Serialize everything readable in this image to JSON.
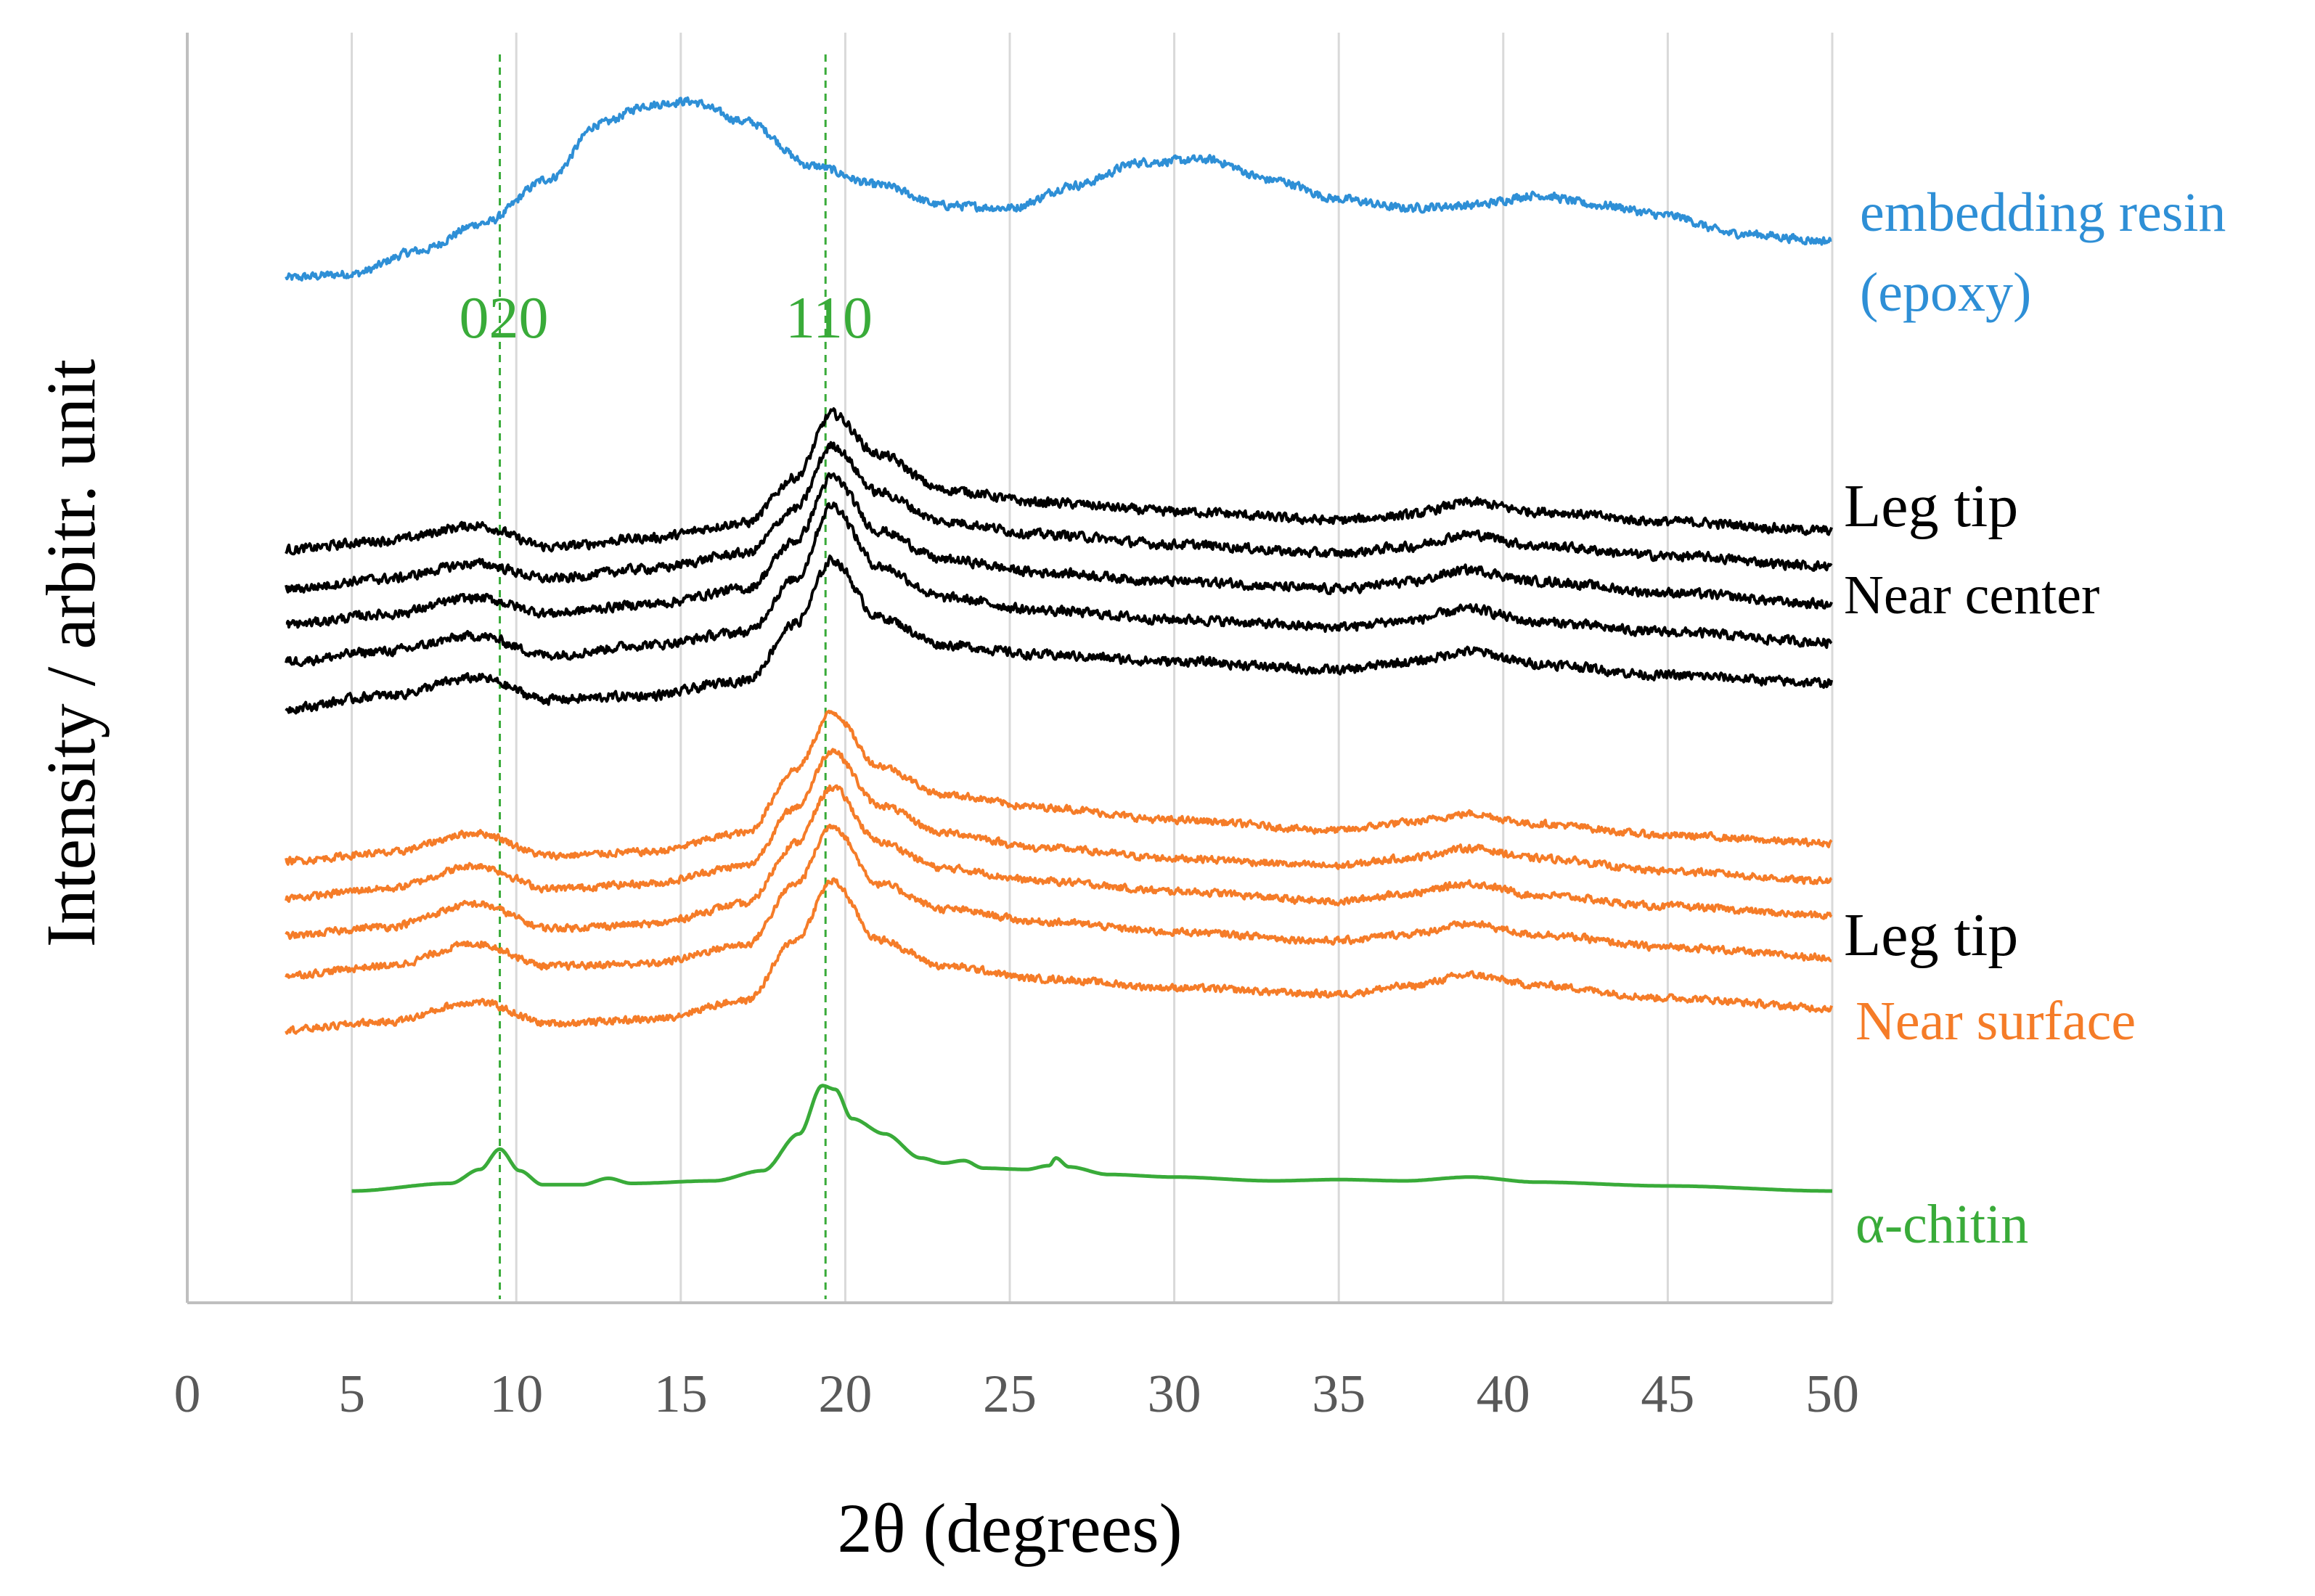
{
  "chart_data": {
    "type": "line",
    "title": "",
    "xlabel": "2θ (degrees)",
    "ylabel": "Intensity / arbitr. unit",
    "xlim": [
      0,
      50
    ],
    "x_ticks": [
      "0",
      "5",
      "10",
      "15",
      "20",
      "25",
      "30",
      "35",
      "40",
      "45",
      "50"
    ],
    "ylim": [
      0,
      100
    ],
    "y_ticks_shown": false,
    "grid": "vertical",
    "reference_lines": [
      {
        "label": "020",
        "x": 9.5,
        "color": "#39ab39"
      },
      {
        "label": "110",
        "x": 19.4,
        "color": "#39ab39"
      }
    ],
    "series": [
      {
        "name": "embedding resin (epoxy)",
        "color": "#2e8fd6",
        "noise": 0.45,
        "points": [
          [
            3,
            80.7
          ],
          [
            5,
            81.0
          ],
          [
            7,
            82.8
          ],
          [
            9,
            85.0
          ],
          [
            11,
            88.5
          ],
          [
            12.5,
            92.8
          ],
          [
            14,
            94.3
          ],
          [
            15.2,
            94.6
          ],
          [
            17,
            93.0
          ],
          [
            19,
            89.5
          ],
          [
            21,
            88.0
          ],
          [
            23,
            86.4
          ],
          [
            25,
            86.2
          ],
          [
            27,
            88.0
          ],
          [
            29,
            89.8
          ],
          [
            31,
            90.0
          ],
          [
            33,
            88.4
          ],
          [
            35,
            86.9
          ],
          [
            37,
            86.2
          ],
          [
            39,
            86.4
          ],
          [
            41,
            87.2
          ],
          [
            43,
            86.4
          ],
          [
            45,
            85.6
          ],
          [
            47,
            84.2
          ],
          [
            50,
            83.6
          ]
        ]
      },
      {
        "name": "Leg tip (black) 1",
        "color": "#000000",
        "noise": 0.5,
        "points": [
          [
            3,
            59.3
          ],
          [
            6,
            60.0
          ],
          [
            8.8,
            61.2
          ],
          [
            11,
            59.5
          ],
          [
            14,
            60.2
          ],
          [
            17,
            61.4
          ],
          [
            18.5,
            65.0
          ],
          [
            19.6,
            70.0
          ],
          [
            21,
            66.8
          ],
          [
            23,
            64.0
          ],
          [
            26,
            63.0
          ],
          [
            30,
            62.3
          ],
          [
            35,
            61.6
          ],
          [
            37,
            62.0
          ],
          [
            39,
            63.0
          ],
          [
            41,
            62.3
          ],
          [
            45,
            61.5
          ],
          [
            50,
            60.8
          ]
        ]
      },
      {
        "name": "Leg tip (black) 2",
        "color": "#000000",
        "noise": 0.5,
        "points": [
          [
            3,
            56.2
          ],
          [
            6,
            57.0
          ],
          [
            8.8,
            58.2
          ],
          [
            11,
            57.0
          ],
          [
            14,
            57.8
          ],
          [
            17,
            59.0
          ],
          [
            18.5,
            62.5
          ],
          [
            19.6,
            67.5
          ],
          [
            21,
            63.8
          ],
          [
            23,
            61.5
          ],
          [
            26,
            60.5
          ],
          [
            30,
            59.7
          ],
          [
            35,
            59.0
          ],
          [
            37,
            59.5
          ],
          [
            39,
            60.5
          ],
          [
            41,
            59.6
          ],
          [
            45,
            58.8
          ],
          [
            50,
            58.0
          ]
        ]
      },
      {
        "name": "Near center (black) 3",
        "color": "#000000",
        "noise": 0.5,
        "points": [
          [
            3,
            53.4
          ],
          [
            6,
            54.2
          ],
          [
            8.8,
            55.5
          ],
          [
            11,
            54.3
          ],
          [
            14,
            55.0
          ],
          [
            17,
            56.2
          ],
          [
            18.5,
            60.0
          ],
          [
            19.6,
            65.0
          ],
          [
            21,
            60.8
          ],
          [
            23,
            58.5
          ],
          [
            26,
            57.5
          ],
          [
            30,
            56.8
          ],
          [
            35,
            56.2
          ],
          [
            37,
            56.7
          ],
          [
            39,
            57.7
          ],
          [
            41,
            56.8
          ],
          [
            45,
            55.9
          ],
          [
            50,
            55.0
          ]
        ]
      },
      {
        "name": "Near center (black) 4",
        "color": "#000000",
        "noise": 0.5,
        "points": [
          [
            3,
            50.5
          ],
          [
            6,
            51.3
          ],
          [
            8.8,
            52.5
          ],
          [
            11,
            51.0
          ],
          [
            14,
            51.8
          ],
          [
            17,
            52.8
          ],
          [
            18.5,
            57.0
          ],
          [
            19.6,
            62.8
          ],
          [
            21,
            58.0
          ],
          [
            23,
            55.5
          ],
          [
            26,
            54.5
          ],
          [
            30,
            53.8
          ],
          [
            35,
            53.2
          ],
          [
            37,
            53.7
          ],
          [
            39,
            54.6
          ],
          [
            41,
            53.6
          ],
          [
            45,
            52.8
          ],
          [
            50,
            52.0
          ]
        ]
      },
      {
        "name": "Near center (black) 5",
        "color": "#000000",
        "noise": 0.5,
        "points": [
          [
            3,
            46.8
          ],
          [
            6,
            47.8
          ],
          [
            8.8,
            49.2
          ],
          [
            11,
            47.5
          ],
          [
            14,
            47.8
          ],
          [
            17,
            49.0
          ],
          [
            18.5,
            53.5
          ],
          [
            19.6,
            58.5
          ],
          [
            21,
            54.0
          ],
          [
            23,
            51.8
          ],
          [
            26,
            51.0
          ],
          [
            30,
            50.5
          ],
          [
            35,
            49.8
          ],
          [
            37,
            50.4
          ],
          [
            39,
            51.3
          ],
          [
            41,
            50.3
          ],
          [
            45,
            49.4
          ],
          [
            50,
            48.8
          ]
        ]
      },
      {
        "name": "Leg tip (orange) 1",
        "color": "#f57c28",
        "noise": 0.38,
        "points": [
          [
            3,
            34.8
          ],
          [
            6,
            35.4
          ],
          [
            8.8,
            37.0
          ],
          [
            11,
            35.2
          ],
          [
            14,
            35.5
          ],
          [
            17,
            37.0
          ],
          [
            18.5,
            42.0
          ],
          [
            19.6,
            46.5
          ],
          [
            21,
            42.3
          ],
          [
            23,
            40.0
          ],
          [
            26,
            39.0
          ],
          [
            30,
            38.0
          ],
          [
            35,
            37.2
          ],
          [
            37,
            37.8
          ],
          [
            39,
            38.5
          ],
          [
            41,
            37.7
          ],
          [
            45,
            36.8
          ],
          [
            50,
            36.2
          ]
        ]
      },
      {
        "name": "Leg tip (orange) 2",
        "color": "#f57c28",
        "noise": 0.38,
        "points": [
          [
            3,
            31.9
          ],
          [
            6,
            32.6
          ],
          [
            8.8,
            34.4
          ],
          [
            11,
            32.6
          ],
          [
            14,
            33.0
          ],
          [
            17,
            34.4
          ],
          [
            18.5,
            39.0
          ],
          [
            19.6,
            43.5
          ],
          [
            21,
            39.2
          ],
          [
            23,
            37.0
          ],
          [
            26,
            35.8
          ],
          [
            30,
            35.0
          ],
          [
            35,
            34.4
          ],
          [
            37,
            35.0
          ],
          [
            39,
            35.8
          ],
          [
            41,
            35.0
          ],
          [
            45,
            34.0
          ],
          [
            50,
            33.2
          ]
        ]
      },
      {
        "name": "Near surface (orange) 3",
        "color": "#f57c28",
        "noise": 0.38,
        "points": [
          [
            3,
            28.9
          ],
          [
            6,
            29.6
          ],
          [
            8.8,
            31.4
          ],
          [
            11,
            29.5
          ],
          [
            14,
            29.8
          ],
          [
            17,
            31.4
          ],
          [
            18.5,
            36.2
          ],
          [
            19.6,
            40.6
          ],
          [
            21,
            36.3
          ],
          [
            23,
            34.2
          ],
          [
            26,
            33.2
          ],
          [
            30,
            32.4
          ],
          [
            35,
            31.6
          ],
          [
            37,
            32.2
          ],
          [
            39,
            33.0
          ],
          [
            41,
            32.1
          ],
          [
            45,
            31.2
          ],
          [
            50,
            30.5
          ]
        ]
      },
      {
        "name": "Near surface (orange) 4",
        "color": "#f57c28",
        "noise": 0.38,
        "points": [
          [
            3,
            25.8
          ],
          [
            6,
            26.5
          ],
          [
            8.8,
            28.3
          ],
          [
            11,
            26.5
          ],
          [
            14,
            26.7
          ],
          [
            17,
            28.2
          ],
          [
            18.5,
            33.0
          ],
          [
            19.6,
            37.6
          ],
          [
            21,
            33.0
          ],
          [
            23,
            31.0
          ],
          [
            26,
            30.0
          ],
          [
            30,
            29.2
          ],
          [
            35,
            28.5
          ],
          [
            37,
            29.0
          ],
          [
            39,
            29.8
          ],
          [
            41,
            29.0
          ],
          [
            45,
            28.0
          ],
          [
            50,
            27.2
          ]
        ]
      },
      {
        "name": "Near surface (orange) 5",
        "color": "#f57c28",
        "noise": 0.38,
        "points": [
          [
            3,
            21.5
          ],
          [
            6,
            22.1
          ],
          [
            8.8,
            23.7
          ],
          [
            11,
            22.0
          ],
          [
            14,
            22.3
          ],
          [
            17,
            23.8
          ],
          [
            18.5,
            28.6
          ],
          [
            19.6,
            33.2
          ],
          [
            21,
            28.6
          ],
          [
            23,
            26.5
          ],
          [
            26,
            25.5
          ],
          [
            30,
            24.8
          ],
          [
            35,
            24.3
          ],
          [
            37,
            24.9
          ],
          [
            39,
            25.8
          ],
          [
            41,
            25.0
          ],
          [
            45,
            24.0
          ],
          [
            50,
            23.2
          ]
        ]
      },
      {
        "name": "α-chitin",
        "color": "#39ab39",
        "noise": 0,
        "points": [
          [
            5,
            8.8
          ],
          [
            8,
            9.4
          ],
          [
            8.9,
            10.5
          ],
          [
            9.5,
            12.1
          ],
          [
            10.1,
            10.4
          ],
          [
            10.8,
            9.3
          ],
          [
            12,
            9.3
          ],
          [
            12.8,
            9.8
          ],
          [
            13.5,
            9.4
          ],
          [
            16,
            9.6
          ],
          [
            17.5,
            10.4
          ],
          [
            18.6,
            13.3
          ],
          [
            19.3,
            17.1
          ],
          [
            19.7,
            16.8
          ],
          [
            20.2,
            14.5
          ],
          [
            21.2,
            13.3
          ],
          [
            22.3,
            11.4
          ],
          [
            23,
            11.0
          ],
          [
            23.6,
            11.2
          ],
          [
            24.2,
            10.6
          ],
          [
            25.5,
            10.5
          ],
          [
            26.2,
            10.8
          ],
          [
            26.4,
            11.4
          ],
          [
            26.8,
            10.7
          ],
          [
            28,
            10.1
          ],
          [
            30,
            9.9
          ],
          [
            33,
            9.6
          ],
          [
            35,
            9.7
          ],
          [
            37,
            9.6
          ],
          [
            39,
            9.9
          ],
          [
            41,
            9.5
          ],
          [
            45,
            9.2
          ],
          [
            50,
            8.8
          ]
        ]
      }
    ],
    "annotations": [
      {
        "text": "embedding resin",
        "color": "#2e8fd6"
      },
      {
        "text": "(epoxy)",
        "color": "#2e8fd6"
      },
      {
        "text": "Leg tip",
        "color": "#000000"
      },
      {
        "text": "Near center",
        "color": "#000000"
      },
      {
        "text": "Leg tip",
        "color": "#000000"
      },
      {
        "text": "Near surface",
        "color": "#f57c28"
      },
      {
        "text": "α-chitin",
        "color": "#39ab39"
      }
    ],
    "legend": "none"
  }
}
